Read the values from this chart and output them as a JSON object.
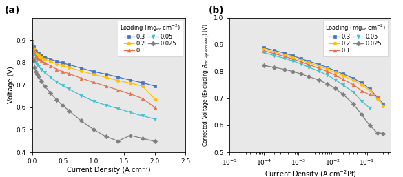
{
  "panel_a": {
    "title": "(a)",
    "xlabel": "Current Density (A cm⁻²)",
    "ylabel": "Voltage (V)",
    "xlim": [
      0,
      2.5
    ],
    "ylim": [
      0.4,
      1.0
    ],
    "yticks": [
      0.4,
      0.5,
      0.6,
      0.7,
      0.8,
      0.9
    ],
    "xticks": [
      0.0,
      0.5,
      1.0,
      1.5,
      2.0,
      2.5
    ],
    "series": {
      "0.3": {
        "x": [
          0.0,
          0.02,
          0.04,
          0.06,
          0.08,
          0.1,
          0.15,
          0.2,
          0.3,
          0.4,
          0.5,
          0.6,
          0.8,
          1.0,
          1.2,
          1.4,
          1.6,
          1.8,
          2.0
        ],
        "y": [
          0.895,
          0.87,
          0.855,
          0.848,
          0.843,
          0.84,
          0.832,
          0.825,
          0.815,
          0.805,
          0.798,
          0.79,
          0.775,
          0.76,
          0.748,
          0.735,
          0.722,
          0.71,
          0.695
        ]
      },
      "0.2": {
        "x": [
          0.0,
          0.02,
          0.04,
          0.06,
          0.08,
          0.1,
          0.15,
          0.2,
          0.3,
          0.4,
          0.5,
          0.6,
          0.8,
          1.0,
          1.2,
          1.4,
          1.6,
          1.8,
          2.0
        ],
        "y": [
          0.89,
          0.862,
          0.847,
          0.84,
          0.835,
          0.832,
          0.824,
          0.816,
          0.805,
          0.794,
          0.786,
          0.778,
          0.762,
          0.747,
          0.734,
          0.72,
          0.708,
          0.695,
          0.638
        ]
      },
      "0.1": {
        "x": [
          0.0,
          0.02,
          0.04,
          0.06,
          0.08,
          0.1,
          0.15,
          0.2,
          0.3,
          0.4,
          0.5,
          0.6,
          0.8,
          1.0,
          1.2,
          1.4,
          1.6,
          1.8,
          2.0
        ],
        "y": [
          0.885,
          0.853,
          0.836,
          0.827,
          0.822,
          0.818,
          0.808,
          0.799,
          0.785,
          0.77,
          0.76,
          0.75,
          0.73,
          0.712,
          0.695,
          0.678,
          0.66,
          0.64,
          0.6
        ]
      },
      "0.05": {
        "x": [
          0.0,
          0.02,
          0.04,
          0.06,
          0.08,
          0.1,
          0.15,
          0.2,
          0.3,
          0.4,
          0.5,
          0.6,
          0.8,
          1.0,
          1.2,
          1.4,
          1.6,
          1.8,
          2.0
        ],
        "y": [
          0.878,
          0.835,
          0.812,
          0.799,
          0.79,
          0.784,
          0.769,
          0.756,
          0.734,
          0.713,
          0.697,
          0.682,
          0.653,
          0.628,
          0.61,
          0.595,
          0.578,
          0.562,
          0.548
        ]
      },
      "0.025": {
        "x": [
          0.0,
          0.02,
          0.04,
          0.06,
          0.08,
          0.1,
          0.15,
          0.2,
          0.3,
          0.4,
          0.5,
          0.6,
          0.8,
          1.0,
          1.2,
          1.4,
          1.6,
          1.8,
          2.0
        ],
        "y": [
          0.87,
          0.808,
          0.779,
          0.76,
          0.747,
          0.737,
          0.715,
          0.696,
          0.663,
          0.633,
          0.608,
          0.585,
          0.54,
          0.502,
          0.47,
          0.45,
          0.475,
          0.462,
          0.448
        ]
      }
    }
  },
  "panel_b": {
    "title": "(b)",
    "xlabel": "Current Density (A cm$^{-2}$Pt)",
    "ylim": [
      0.5,
      1.0
    ],
    "yticks": [
      0.5,
      0.6,
      0.7,
      0.8,
      0.9,
      1.0
    ],
    "xlim_log": [
      -5,
      -0.3
    ],
    "series": {
      "0.3": {
        "x": [
          0.0001,
          0.0002,
          0.0004,
          0.0007,
          0.0012,
          0.002,
          0.004,
          0.007,
          0.012,
          0.02,
          0.04,
          0.07,
          0.12,
          0.2,
          0.3
        ],
        "y": [
          0.888,
          0.878,
          0.868,
          0.858,
          0.848,
          0.838,
          0.826,
          0.815,
          0.803,
          0.791,
          0.775,
          0.758,
          0.735,
          0.705,
          0.68
        ]
      },
      "0.2": {
        "x": [
          0.0001,
          0.0002,
          0.0004,
          0.0007,
          0.0012,
          0.002,
          0.004,
          0.007,
          0.012,
          0.02,
          0.04,
          0.07,
          0.12,
          0.2,
          0.3
        ],
        "y": [
          0.883,
          0.872,
          0.862,
          0.852,
          0.842,
          0.832,
          0.82,
          0.809,
          0.796,
          0.784,
          0.768,
          0.751,
          0.73,
          0.7,
          0.672
        ]
      },
      "0.1": {
        "x": [
          0.0001,
          0.0002,
          0.0004,
          0.0007,
          0.0012,
          0.002,
          0.004,
          0.007,
          0.012,
          0.02,
          0.04,
          0.07,
          0.12,
          0.2
        ],
        "y": [
          0.877,
          0.866,
          0.856,
          0.846,
          0.836,
          0.825,
          0.812,
          0.8,
          0.786,
          0.771,
          0.751,
          0.729,
          0.714,
          0.708
        ]
      },
      "0.05": {
        "x": [
          0.0001,
          0.0002,
          0.0004,
          0.0007,
          0.0012,
          0.002,
          0.004,
          0.007,
          0.012,
          0.02,
          0.04,
          0.07,
          0.12
        ],
        "y": [
          0.87,
          0.859,
          0.849,
          0.839,
          0.828,
          0.816,
          0.801,
          0.787,
          0.769,
          0.75,
          0.724,
          0.69,
          0.665
        ]
      },
      "0.025": {
        "x": [
          0.0001,
          0.0002,
          0.0004,
          0.0007,
          0.0012,
          0.002,
          0.004,
          0.007,
          0.012,
          0.02,
          0.04,
          0.07,
          0.12,
          0.2,
          0.3
        ],
        "y": [
          0.822,
          0.815,
          0.808,
          0.8,
          0.791,
          0.781,
          0.768,
          0.754,
          0.737,
          0.715,
          0.68,
          0.64,
          0.6,
          0.572,
          0.57
        ]
      }
    }
  },
  "series_colors": {
    "0.3": "#4472C4",
    "0.2": "#FFC000",
    "0.1": "#E8704A",
    "0.05": "#40C0D0",
    "0.025": "#808080"
  },
  "series_markers": {
    "0.3": "s",
    "0.2": "o",
    "0.1": "^",
    "0.05": "v",
    "0.025": "D"
  },
  "plot_order": [
    "0.3",
    "0.2",
    "0.1",
    "0.05",
    "0.025"
  ],
  "legend_col1": [
    "0.3",
    "0.2",
    "0.1"
  ],
  "legend_col2": [
    "0.05",
    "0.025"
  ],
  "legend_title": "Loading (mg$_{Pt}$ cm$^{-2}$)",
  "bg_color": "#e8e8e8"
}
